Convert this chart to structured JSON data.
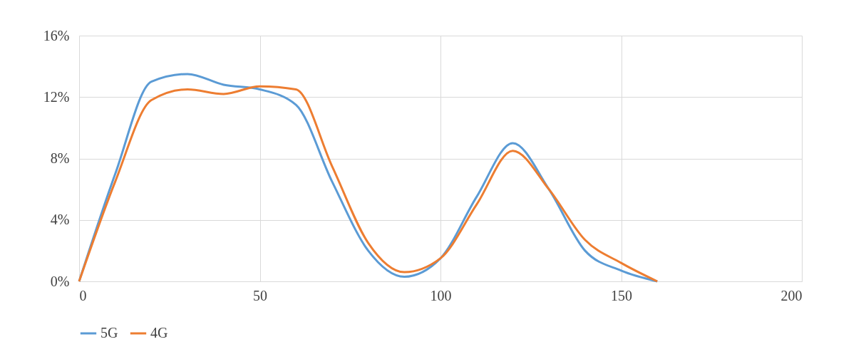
{
  "chart_data": {
    "type": "line",
    "xlim": [
      0,
      200
    ],
    "xticks": [
      0,
      50,
      100,
      150,
      200
    ],
    "ylim": [
      0,
      16
    ],
    "yticks": [
      {
        "value": 0,
        "label": "0%"
      },
      {
        "value": 4,
        "label": "4%"
      },
      {
        "value": 8,
        "label": "8%"
      },
      {
        "value": 12,
        "label": "12%"
      },
      {
        "value": 16,
        "label": "16%"
      }
    ],
    "x": [
      0,
      10,
      20,
      30,
      40,
      50,
      60,
      70,
      80,
      90,
      100,
      110,
      120,
      130,
      140,
      150,
      160
    ],
    "series": [
      {
        "name": "5G",
        "color": "#5b9bd5",
        "values": [
          0,
          7,
          13,
          13.5,
          12.8,
          12.5,
          11.5,
          6.5,
          2,
          0.3,
          1.5,
          5.5,
          9,
          6,
          2,
          0.7,
          0
        ]
      },
      {
        "name": "4G",
        "color": "#ed7d31",
        "values": [
          0,
          6.5,
          11.8,
          12.5,
          12.2,
          12.7,
          12.5,
          7.5,
          2.5,
          0.6,
          1.5,
          5,
          8.5,
          6,
          2.7,
          1.2,
          0
        ]
      }
    ],
    "grid": true,
    "legend": "bottom",
    "marker": "none",
    "line_style": "solid"
  }
}
